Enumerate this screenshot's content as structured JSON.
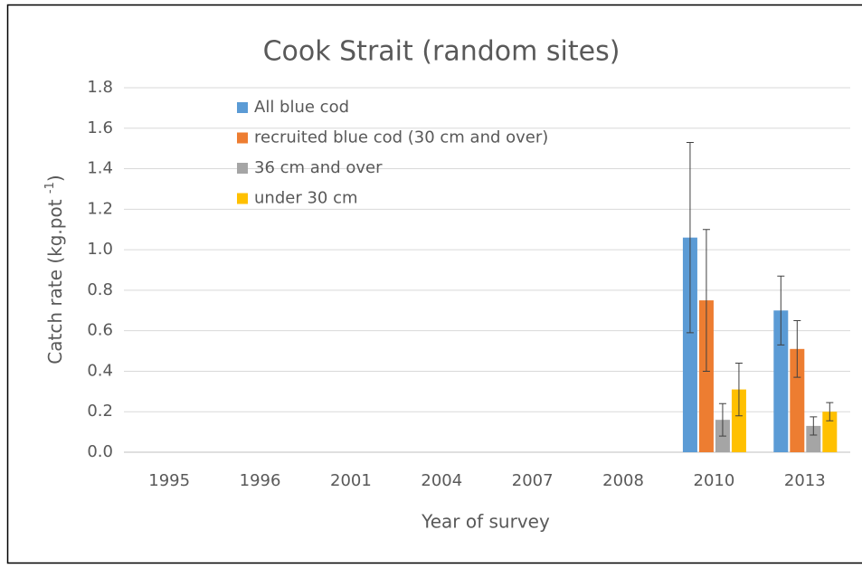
{
  "chart_data": {
    "type": "bar",
    "title": "Cook Strait (random sites)",
    "x_label": "Year of survey",
    "y_label": [
      "Catch rate (kg.pot ",
      "-1",
      ")"
    ],
    "categories": [
      "1995",
      "1996",
      "2001",
      "2004",
      "2007",
      "2008",
      "2010",
      "2013"
    ],
    "series": [
      {
        "name": "All blue cod",
        "color": "#5b9bd5",
        "values": [
          null,
          null,
          null,
          null,
          null,
          null,
          1.06,
          0.7
        ],
        "errors": [
          null,
          null,
          null,
          null,
          null,
          null,
          0.47,
          0.17
        ]
      },
      {
        "name": "recruited blue cod (30 cm and over)",
        "color": "#ed7d31",
        "values": [
          null,
          null,
          null,
          null,
          null,
          null,
          0.75,
          0.51
        ],
        "errors": [
          null,
          null,
          null,
          null,
          null,
          null,
          0.35,
          0.14
        ]
      },
      {
        "name": "36 cm and over",
        "color": "#a5a5a5",
        "values": [
          null,
          null,
          null,
          null,
          null,
          null,
          0.16,
          0.13
        ],
        "errors": [
          null,
          null,
          null,
          null,
          null,
          null,
          0.08,
          0.045
        ]
      },
      {
        "name": "under 30 cm",
        "color": "#ffc000",
        "values": [
          null,
          null,
          null,
          null,
          null,
          null,
          0.31,
          0.2
        ],
        "errors": [
          null,
          null,
          null,
          null,
          null,
          null,
          0.13,
          0.045
        ]
      }
    ],
    "ylim": [
      0,
      1.8
    ],
    "yticks": [
      {
        "value": 0,
        "label": "0.0"
      },
      0.2,
      0.4,
      0.6,
      0.8,
      {
        "value": 1,
        "label": "1.0"
      },
      1.2,
      1.4,
      1.6,
      1.8
    ],
    "grid": true,
    "legend": "top-left"
  }
}
